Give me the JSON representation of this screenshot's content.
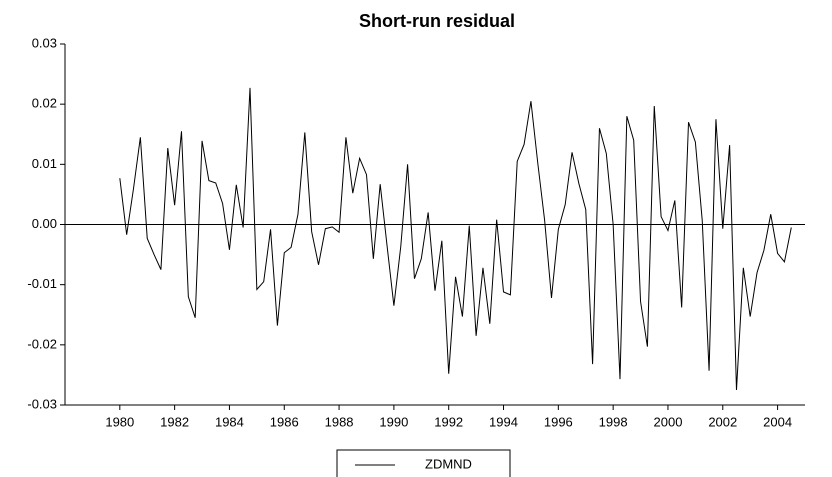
{
  "chart_data": {
    "type": "line",
    "title": "Short-run residual",
    "x": [
      1980,
      1980.25,
      1980.5,
      1980.75,
      1981,
      1981.25,
      1981.5,
      1981.75,
      1982,
      1982.25,
      1982.5,
      1982.75,
      1983,
      1983.25,
      1983.5,
      1983.75,
      1984,
      1984.25,
      1984.5,
      1984.75,
      1985,
      1985.25,
      1985.5,
      1985.75,
      1986,
      1986.25,
      1986.5,
      1986.75,
      1987,
      1987.25,
      1987.5,
      1987.75,
      1988,
      1988.25,
      1988.5,
      1988.75,
      1989,
      1989.25,
      1989.5,
      1989.75,
      1990,
      1990.25,
      1990.5,
      1990.75,
      1991,
      1991.25,
      1991.5,
      1991.75,
      1992,
      1992.25,
      1992.5,
      1992.75,
      1993,
      1993.25,
      1993.5,
      1993.75,
      1994,
      1994.25,
      1994.5,
      1994.75,
      1995,
      1995.25,
      1995.5,
      1995.75,
      1996,
      1996.25,
      1996.5,
      1996.75,
      1997,
      1997.25,
      1997.5,
      1997.75,
      1998,
      1998.25,
      1998.5,
      1998.75,
      1999,
      1999.25,
      1999.5,
      1999.75,
      2000,
      2000.25,
      2000.5,
      2000.75,
      2001,
      2001.25,
      2001.5,
      2001.75,
      2002,
      2002.25,
      2002.5,
      2002.75,
      2003,
      2003.25,
      2003.5,
      2003.75,
      2004,
      2004.25,
      2004.5
    ],
    "series": [
      {
        "name": "ZDMND",
        "color": "#000000",
        "values": [
          0.0077,
          -0.0017,
          0.006,
          0.0145,
          -0.0023,
          -0.005,
          -0.0075,
          0.0127,
          0.0032,
          0.0155,
          -0.012,
          -0.0155,
          0.0139,
          0.0073,
          0.0069,
          0.0035,
          -0.0042,
          0.0066,
          -0.0005,
          0.0227,
          -0.0108,
          -0.0095,
          -0.0008,
          -0.0168,
          -0.0047,
          -0.0038,
          0.0017,
          0.0153,
          -0.0012,
          -0.0067,
          -0.0007,
          -0.0004,
          -0.0013,
          0.0145,
          0.0052,
          0.011,
          0.0083,
          -0.0057,
          0.0067,
          -0.0035,
          -0.0135,
          -0.0037,
          0.01,
          -0.009,
          -0.0057,
          0.002,
          -0.011,
          -0.0027,
          -0.0248,
          -0.0087,
          -0.0153,
          -0.0002,
          -0.0185,
          -0.0072,
          -0.0165,
          0.0008,
          -0.0112,
          -0.0117,
          0.0105,
          0.0133,
          0.0205,
          0.0102,
          0.0007,
          -0.0122,
          -0.0008,
          0.0033,
          0.012,
          0.0068,
          0.0025,
          -0.0232,
          0.016,
          0.0118,
          0,
          -0.0257,
          0.018,
          0.014,
          -0.0128,
          -0.0203,
          0.0197,
          0.0013,
          -0.001,
          0.004,
          -0.0138,
          0.017,
          0.0137,
          0.0007,
          -0.0243,
          0.0175,
          -0.0007,
          0.0132,
          -0.0275,
          -0.0072,
          -0.0153,
          -0.008,
          -0.0043,
          0.0017,
          -0.0048,
          -0.0062,
          -0.0005
        ]
      }
    ],
    "xlim": [
      1978,
      2005
    ],
    "xticks": [
      1980,
      1982,
      1984,
      1986,
      1988,
      1990,
      1992,
      1994,
      1996,
      1998,
      2000,
      2002,
      2004
    ],
    "ylim": [
      -0.03,
      0.03
    ],
    "yticks": [
      0.03,
      0.02,
      0.01,
      {
        "value": 0,
        "label": "0.00"
      },
      -0.01,
      -0.02,
      -0.03
    ],
    "zero_line": true,
    "legend": "bottom"
  }
}
